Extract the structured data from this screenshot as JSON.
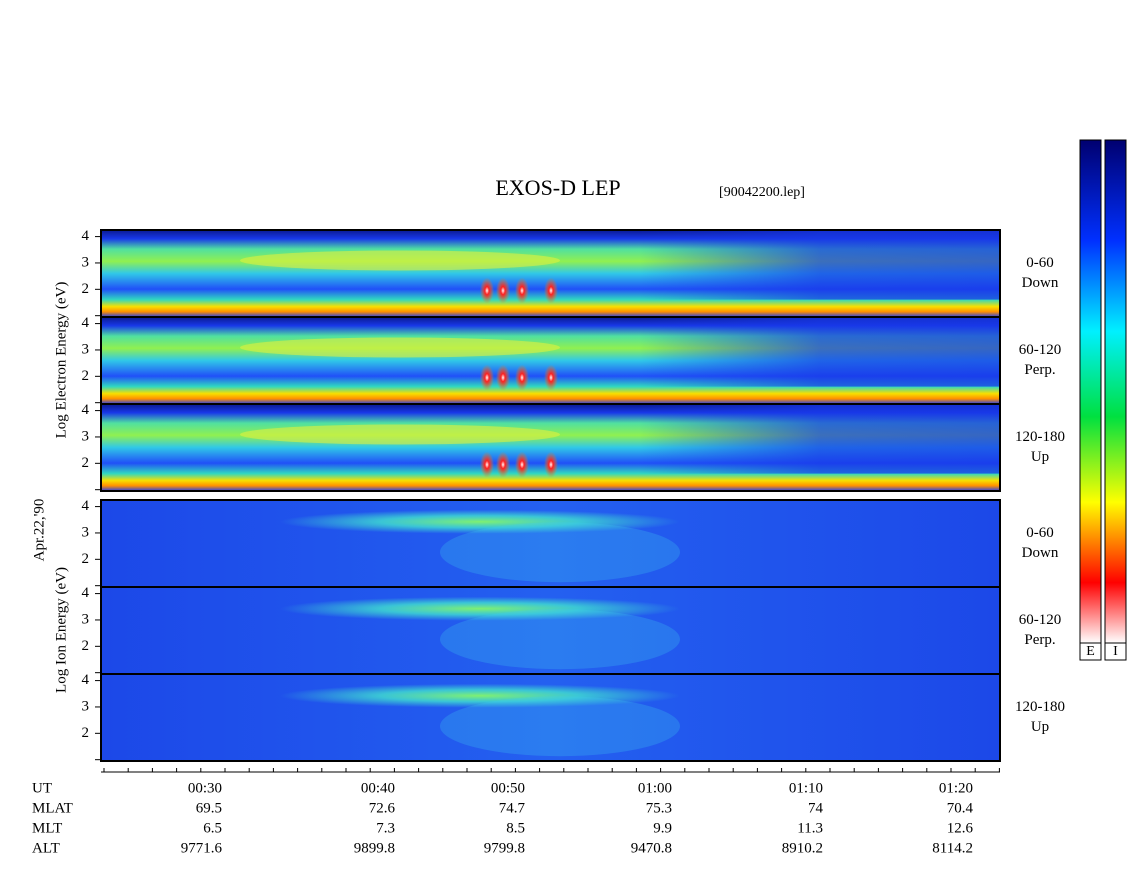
{
  "title": "EXOS-D LEP",
  "file": "[90042200.lep]",
  "date_label": "Apr.22,'90",
  "electron_axis_label": "Log  Electron  Energy  (eV)",
  "ion_axis_label": "Log  Ion  Energy  (eV)",
  "ylim": [
    0.95,
    4.25
  ],
  "yticks": [
    1,
    2,
    3,
    4
  ],
  "ytick_labels": [
    "2",
    "3",
    "4"
  ],
  "panels": [
    {
      "species": "electron",
      "angle": "0-60",
      "direction": "Down"
    },
    {
      "species": "electron",
      "angle": "60-120",
      "direction": "Perp."
    },
    {
      "species": "electron",
      "angle": "120-180",
      "direction": "Up"
    },
    {
      "species": "ion",
      "angle": "0-60",
      "direction": "Down"
    },
    {
      "species": "ion",
      "angle": "60-120",
      "direction": "Perp."
    },
    {
      "species": "ion",
      "angle": "120-180",
      "direction": "Up"
    }
  ],
  "colorbar_labels": [
    "E",
    "I"
  ],
  "ephemeris": {
    "rows": [
      {
        "name": "UT",
        "values": [
          "00:30",
          "00:40",
          "00:50",
          "01:00",
          "01:10",
          "01:20"
        ]
      },
      {
        "name": "MLAT",
        "values": [
          69.5,
          72.6,
          74.7,
          75.3,
          74.0,
          70.4
        ]
      },
      {
        "name": "MLT",
        "values": [
          6.5,
          7.3,
          8.5,
          9.9,
          11.3,
          12.6
        ]
      },
      {
        "name": "ALT",
        "values": [
          9771.6,
          9899.8,
          9799.8,
          9470.8,
          8910.2,
          8114.2
        ]
      }
    ]
  }
}
